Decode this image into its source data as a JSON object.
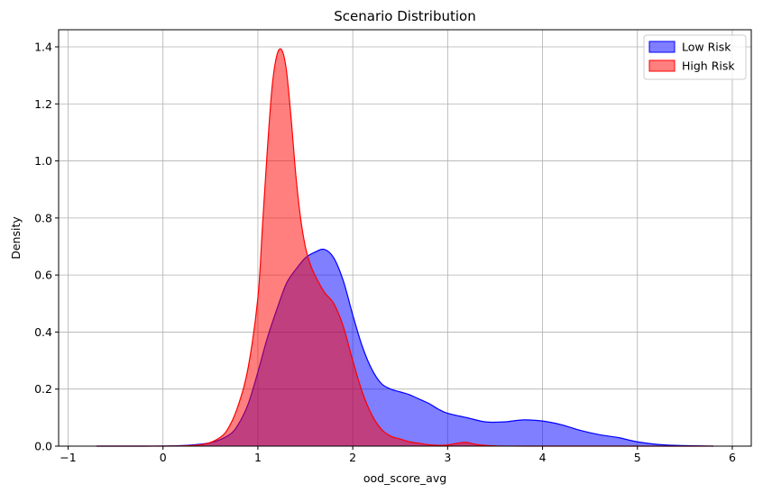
{
  "chart_data": {
    "type": "area",
    "title": "Scenario Distribution",
    "xlabel": "ood_score_avg",
    "ylabel": "Density",
    "xlim": [
      -1.1,
      6.2
    ],
    "ylim": [
      0,
      1.46
    ],
    "x_ticks": [
      -1,
      0,
      1,
      2,
      3,
      4,
      5,
      6
    ],
    "y_ticks": [
      0.0,
      0.2,
      0.4,
      0.6,
      0.8,
      1.0,
      1.2,
      1.4
    ],
    "x_tick_labels": [
      "−1",
      "0",
      "1",
      "2",
      "3",
      "4",
      "5",
      "6"
    ],
    "y_tick_labels": [
      "0.0",
      "0.2",
      "0.4",
      "0.6",
      "0.8",
      "1.0",
      "1.2",
      "1.4"
    ],
    "grid": true,
    "legend_position": "top-right",
    "series": [
      {
        "name": "Low Risk",
        "color": "#0000ff",
        "fill_opacity": 0.5,
        "x": [
          -0.7,
          -0.2,
          0.2,
          0.5,
          0.7,
          0.8,
          0.9,
          1.0,
          1.1,
          1.2,
          1.3,
          1.4,
          1.5,
          1.6,
          1.7,
          1.8,
          1.9,
          2.0,
          2.1,
          2.2,
          2.3,
          2.4,
          2.5,
          2.6,
          2.7,
          2.8,
          2.9,
          3.0,
          3.2,
          3.4,
          3.6,
          3.8,
          4.0,
          4.2,
          4.4,
          4.6,
          4.8,
          5.0,
          5.3,
          5.8
        ],
        "y": [
          0.0,
          0.0,
          0.002,
          0.012,
          0.04,
          0.08,
          0.15,
          0.26,
          0.38,
          0.48,
          0.57,
          0.62,
          0.66,
          0.68,
          0.69,
          0.66,
          0.58,
          0.46,
          0.35,
          0.27,
          0.22,
          0.2,
          0.19,
          0.18,
          0.165,
          0.15,
          0.13,
          0.115,
          0.1,
          0.085,
          0.085,
          0.092,
          0.088,
          0.075,
          0.055,
          0.04,
          0.03,
          0.015,
          0.004,
          0.0
        ]
      },
      {
        "name": "High Risk",
        "color": "#ff0000",
        "fill_opacity": 0.5,
        "x": [
          -0.7,
          0.0,
          0.4,
          0.6,
          0.7,
          0.8,
          0.9,
          1.0,
          1.05,
          1.1,
          1.15,
          1.2,
          1.25,
          1.3,
          1.35,
          1.4,
          1.45,
          1.5,
          1.55,
          1.6,
          1.7,
          1.8,
          1.9,
          2.0,
          2.1,
          2.2,
          2.3,
          2.4,
          2.5,
          2.6,
          2.7,
          2.8,
          2.9,
          3.0,
          3.1,
          3.2,
          3.3,
          3.5,
          4.0,
          5.8
        ],
        "y": [
          0.0,
          0.0,
          0.005,
          0.03,
          0.07,
          0.15,
          0.28,
          0.52,
          0.78,
          1.04,
          1.26,
          1.37,
          1.39,
          1.32,
          1.15,
          0.95,
          0.8,
          0.7,
          0.64,
          0.6,
          0.54,
          0.5,
          0.42,
          0.3,
          0.19,
          0.11,
          0.06,
          0.035,
          0.025,
          0.015,
          0.01,
          0.005,
          0.003,
          0.004,
          0.01,
          0.013,
          0.006,
          0.001,
          0.0,
          0.0
        ]
      }
    ]
  }
}
